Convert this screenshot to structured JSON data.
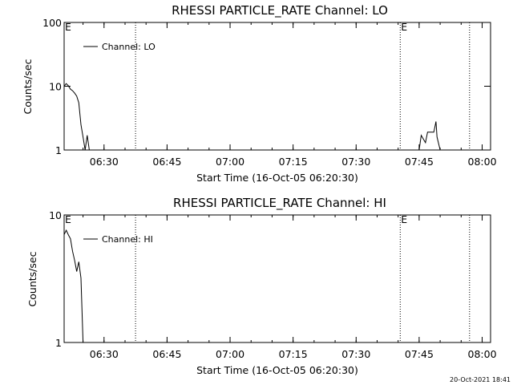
{
  "footer": {
    "timestamp": "20-Oct-2021 18:41"
  },
  "chart_data": [
    {
      "type": "line",
      "title": "RHESSI PARTICLE_RATE Channel: LO",
      "xlabel": "Start Time (16-Oct-05 06:20:30)",
      "ylabel": "Counts/sec",
      "yscale": "log",
      "ylim": [
        1,
        100
      ],
      "xlim": [
        "06:20:30",
        "08:02:00"
      ],
      "x_ticks": [
        "06:30",
        "06:45",
        "07:00",
        "07:15",
        "07:30",
        "07:45",
        "08:00"
      ],
      "y_ticks": [
        "1",
        "10",
        "100"
      ],
      "legend": {
        "label": "Channel: LO",
        "placement": "top-left"
      },
      "event_markers": [
        {
          "time": "06:20:30",
          "label": "E"
        },
        {
          "time": "06:37:30",
          "label": ""
        },
        {
          "time": "07:40:30",
          "label": "E"
        },
        {
          "time": "07:57:00",
          "label": ""
        }
      ],
      "series": [
        {
          "points": [
            [
              "06:20:30",
              10.0
            ],
            [
              "06:21:00",
              11.0
            ],
            [
              "06:21:30",
              10.2
            ],
            [
              "06:22:00",
              9.0
            ],
            [
              "06:22:30",
              8.5
            ],
            [
              "06:23:00",
              7.8
            ],
            [
              "06:23:30",
              7.0
            ],
            [
              "06:24:00",
              5.5
            ],
            [
              "06:24:30",
              2.5
            ],
            [
              "06:25:00",
              1.6
            ],
            [
              "06:25:30",
              1.0
            ],
            [
              "06:26:00",
              1.7
            ],
            [
              "06:26:30",
              1.0
            ]
          ]
        },
        {
          "points": [
            [
              "07:45:00",
              1.0
            ],
            [
              "07:45:30",
              1.7
            ],
            [
              "07:46:30",
              1.3
            ],
            [
              "07:47:00",
              1.9
            ],
            [
              "07:48:00",
              1.9
            ],
            [
              "07:48:30",
              1.9
            ],
            [
              "07:49:00",
              2.8
            ],
            [
              "07:49:15",
              1.6
            ],
            [
              "07:50:00",
              1.0
            ]
          ]
        }
      ]
    },
    {
      "type": "line",
      "title": "RHESSI PARTICLE_RATE Channel: HI",
      "xlabel": "Start Time (16-Oct-05 06:20:30)",
      "ylabel": "Counts/sec",
      "yscale": "log",
      "ylim": [
        1,
        10
      ],
      "xlim": [
        "06:20:30",
        "08:02:00"
      ],
      "x_ticks": [
        "06:30",
        "06:45",
        "07:00",
        "07:15",
        "07:30",
        "07:45",
        "08:00"
      ],
      "y_ticks": [
        "1",
        "10"
      ],
      "legend": {
        "label": "Channel: HI",
        "placement": "top-left"
      },
      "event_markers": [
        {
          "time": "06:20:30",
          "label": "E"
        },
        {
          "time": "06:37:30",
          "label": ""
        },
        {
          "time": "07:40:30",
          "label": "E"
        },
        {
          "time": "07:57:00",
          "label": ""
        }
      ],
      "series": [
        {
          "points": [
            [
              "06:20:30",
              7.0
            ],
            [
              "06:21:00",
              7.6
            ],
            [
              "06:21:30",
              7.0
            ],
            [
              "06:22:00",
              6.5
            ],
            [
              "06:22:30",
              5.2
            ],
            [
              "06:23:00",
              4.4
            ],
            [
              "06:23:30",
              3.6
            ],
            [
              "06:24:00",
              4.3
            ],
            [
              "06:24:30",
              3.2
            ],
            [
              "06:25:00",
              1.0
            ]
          ]
        }
      ]
    }
  ]
}
